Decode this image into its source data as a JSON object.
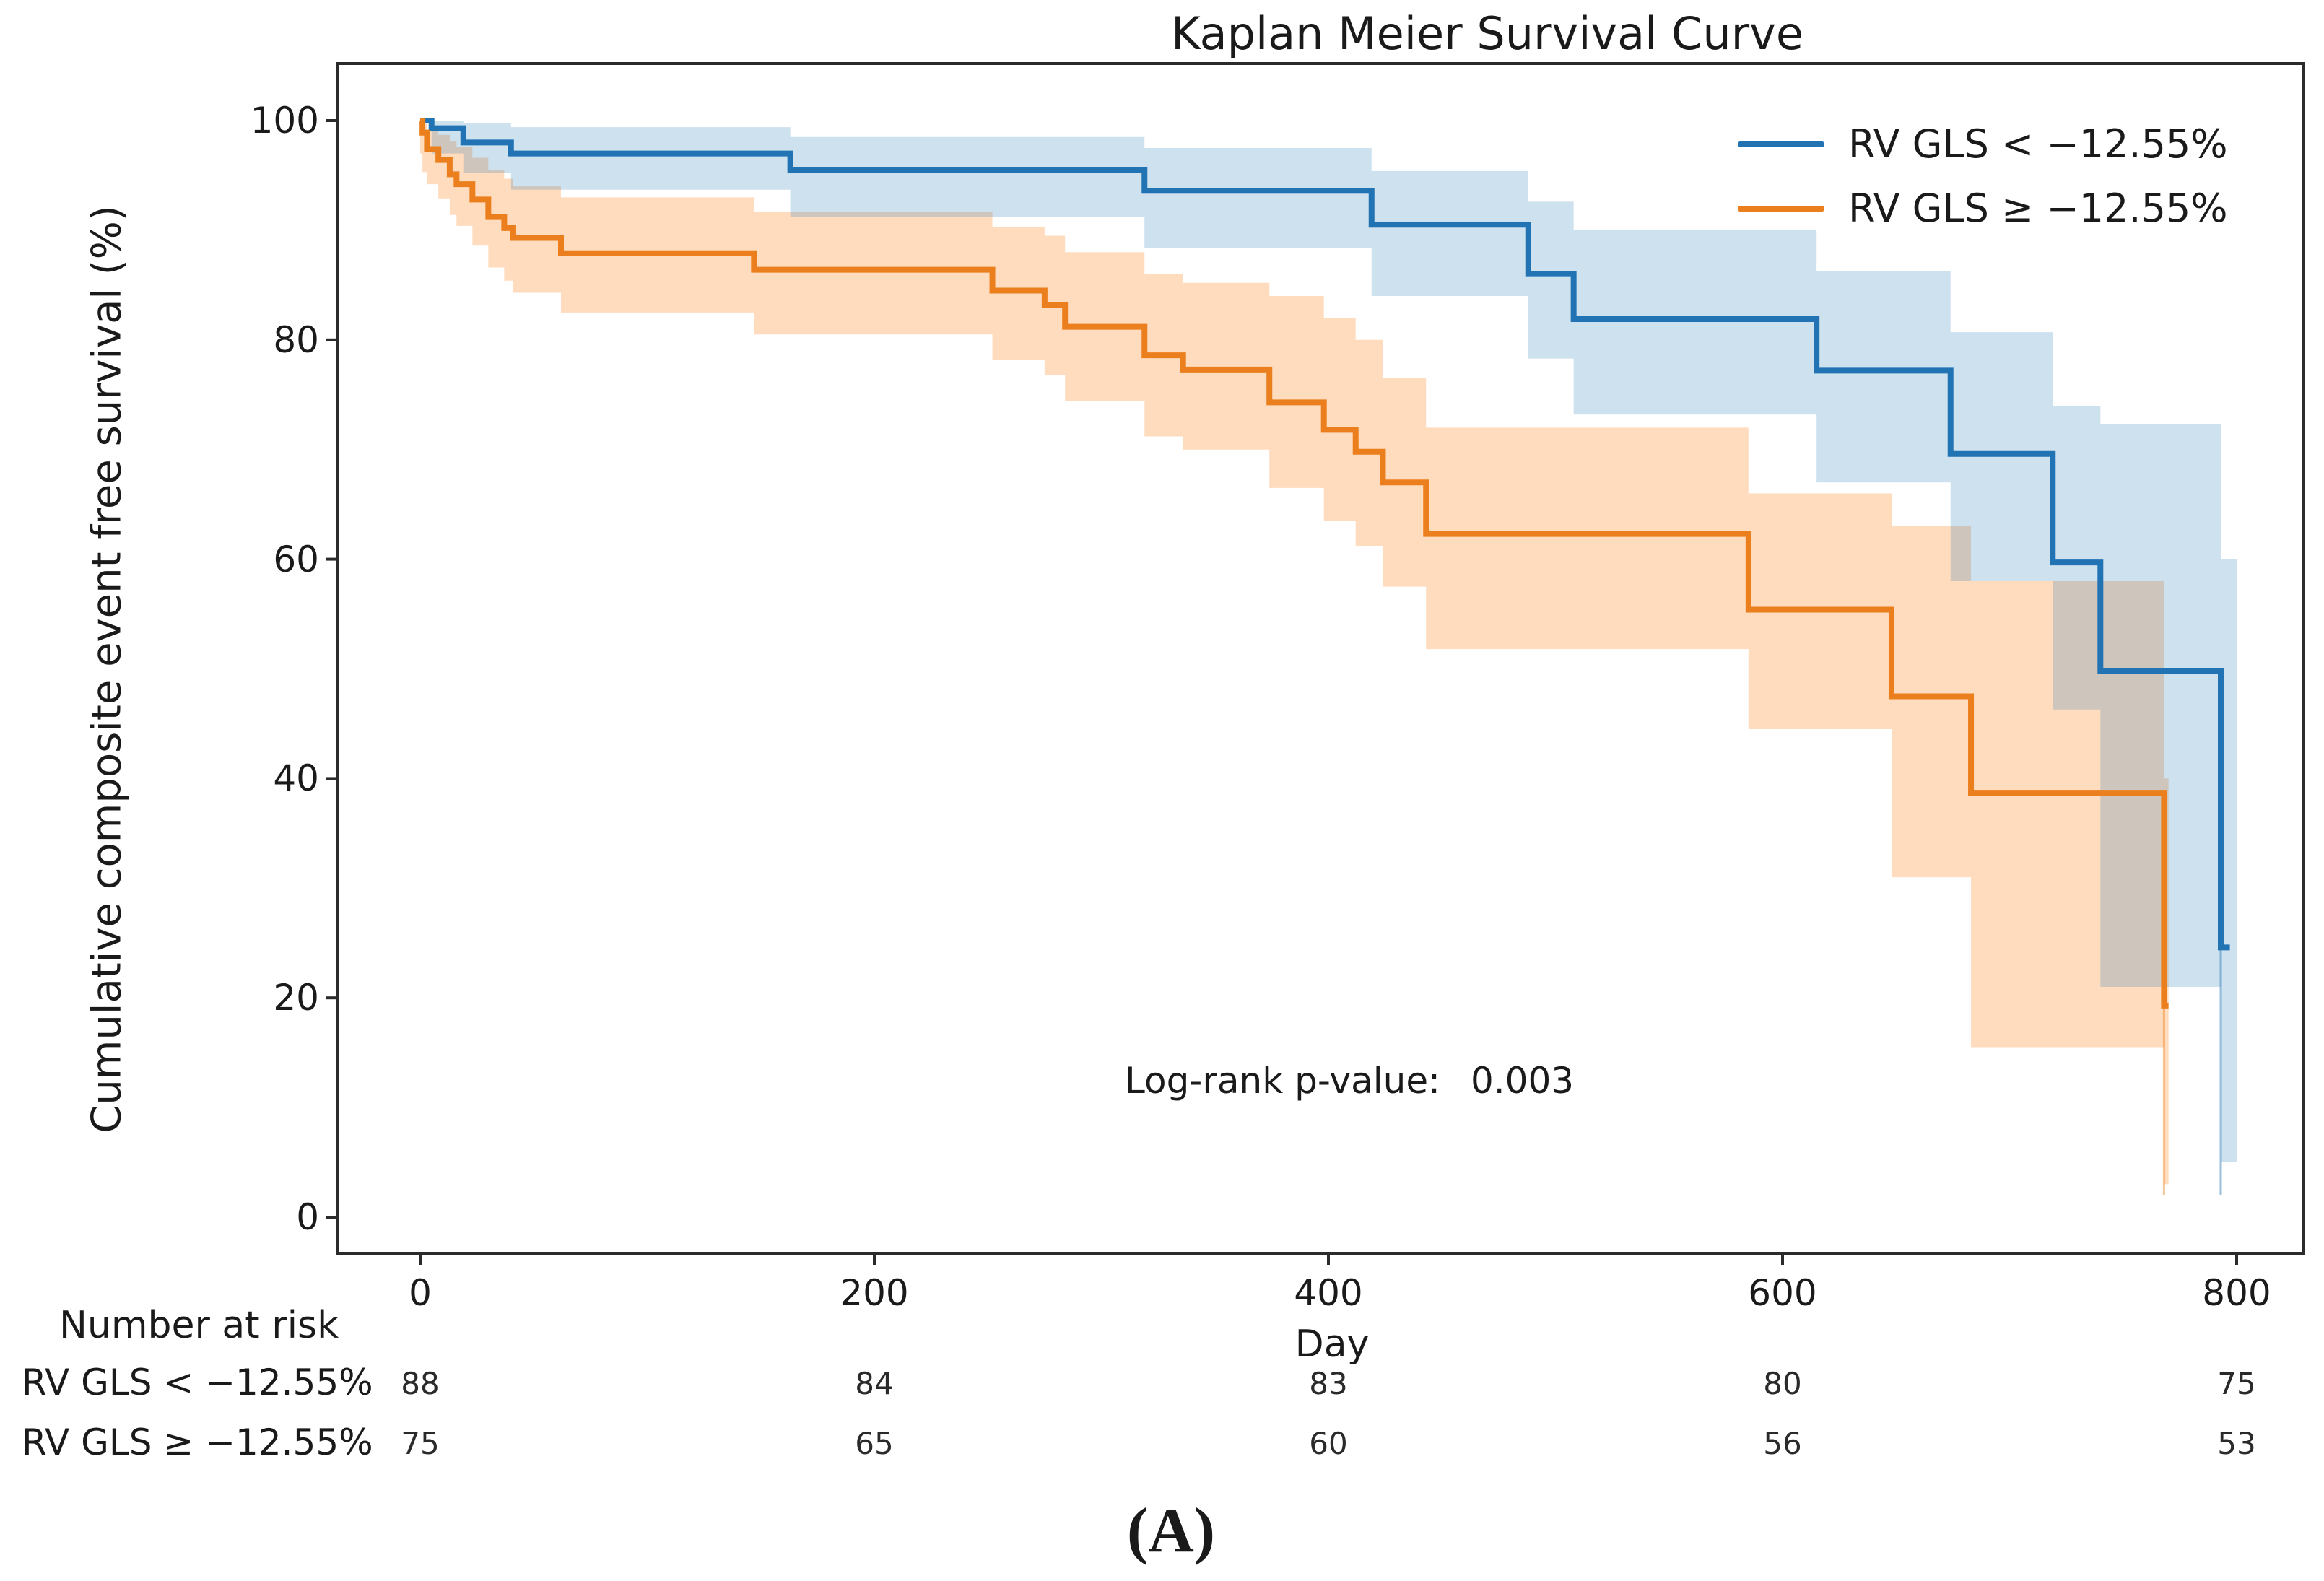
{
  "title": "Kaplan Meier Survival Curve",
  "axes": {
    "x_label": "Day",
    "y_label": "Cumulative composite event free survival (%)",
    "x_ticks": [
      0,
      200,
      400,
      600,
      800
    ],
    "y_ticks": [
      0,
      20,
      40,
      60,
      80,
      100
    ]
  },
  "legend": {
    "items": [
      {
        "label": "RV GLS < −12.55%",
        "color": "#2273b4"
      },
      {
        "label": "RV GLS ≥ −12.55%",
        "color": "#ec7f1d"
      }
    ]
  },
  "annotation": {
    "label": "Log-rank p-value:",
    "value": "0.003"
  },
  "risk_table": {
    "header": "Number at risk",
    "rows": [
      {
        "label": "RV GLS < −12.55%",
        "values": [
          "88",
          "84",
          "83",
          "80",
          "75"
        ]
      },
      {
        "label": "RV GLS ≥ −12.55%",
        "values": [
          "75",
          "65",
          "60",
          "56",
          "53"
        ]
      }
    ]
  },
  "caption": "(A)",
  "chart_data": {
    "type": "line",
    "subtype": "kaplan-meier-step",
    "title": "Kaplan Meier Survival Curve",
    "xlabel": "Day",
    "ylabel": "Cumulative composite event free survival (%)",
    "xlim": [
      0,
      800
    ],
    "ylim": [
      0,
      100
    ],
    "grid": false,
    "legend_position": "upper right",
    "annotation": "Log-rank p-value: 0.003",
    "series": [
      {
        "name": "RV GLS < −12.55%",
        "color": "#2273b4",
        "band_color": "rgba(31,119,180,0.22)",
        "end_day": 797,
        "steps": [
          [
            0,
            100
          ],
          [
            5,
            99.3
          ],
          [
            19,
            98.0
          ],
          [
            40,
            97.0
          ],
          [
            163,
            95.5
          ],
          [
            319,
            93.6
          ],
          [
            419,
            90.5
          ],
          [
            488,
            86.0
          ],
          [
            508,
            81.9
          ],
          [
            615,
            77.2
          ],
          [
            674,
            69.6
          ],
          [
            719,
            59.7
          ],
          [
            740,
            49.8
          ],
          [
            793,
            24.6
          ]
        ],
        "ci_band": [
          [
            0,
            100,
            100
          ],
          [
            5,
            100,
            97.0
          ],
          [
            19,
            99.8,
            95.2
          ],
          [
            40,
            99.4,
            93.7
          ],
          [
            163,
            98.5,
            91.2
          ],
          [
            319,
            97.5,
            88.4
          ],
          [
            419,
            95.4,
            84.0
          ],
          [
            488,
            92.6,
            78.3
          ],
          [
            508,
            90.0,
            73.2
          ],
          [
            615,
            86.3,
            67.0
          ],
          [
            674,
            80.7,
            58.0
          ],
          [
            719,
            74.0,
            46.3
          ],
          [
            740,
            72.3,
            21.0
          ],
          [
            793,
            60.0,
            5.0
          ]
        ],
        "ci_end_day": 800,
        "tail": {
          "day": 793,
          "from": 24.6,
          "to": 2
        }
      },
      {
        "name": "RV GLS ≥ −12.55%",
        "color": "#ec7f1d",
        "band_color": "rgba(255,127,14,0.27)",
        "end_day": 770,
        "steps": [
          [
            0,
            100
          ],
          [
            1,
            98.9
          ],
          [
            3,
            97.4
          ],
          [
            8,
            96.4
          ],
          [
            13,
            95.1
          ],
          [
            16,
            94.2
          ],
          [
            23,
            92.8
          ],
          [
            30,
            91.2
          ],
          [
            37,
            90.2
          ],
          [
            41,
            89.3
          ],
          [
            62,
            87.9
          ],
          [
            147,
            86.4
          ],
          [
            252,
            84.5
          ],
          [
            275,
            83.2
          ],
          [
            284,
            81.2
          ],
          [
            319,
            78.6
          ],
          [
            336,
            77.3
          ],
          [
            374,
            74.3
          ],
          [
            398,
            71.8
          ],
          [
            412,
            69.8
          ],
          [
            424,
            67.0
          ],
          [
            443,
            62.3
          ],
          [
            585,
            55.4
          ],
          [
            648,
            47.5
          ],
          [
            683,
            38.7
          ],
          [
            768,
            19.3
          ]
        ],
        "ci_band": [
          [
            0,
            100,
            97.0
          ],
          [
            1,
            99.7,
            95.3
          ],
          [
            3,
            99.2,
            94.2
          ],
          [
            8,
            98.7,
            92.9
          ],
          [
            13,
            98.1,
            91.4
          ],
          [
            16,
            97.6,
            90.4
          ],
          [
            23,
            96.6,
            88.6
          ],
          [
            30,
            95.5,
            86.6
          ],
          [
            37,
            94.7,
            85.4
          ],
          [
            41,
            94.0,
            84.3
          ],
          [
            62,
            93.0,
            82.5
          ],
          [
            147,
            91.7,
            80.5
          ],
          [
            252,
            90.3,
            78.2
          ],
          [
            275,
            89.5,
            76.8
          ],
          [
            284,
            88.0,
            74.4
          ],
          [
            319,
            86.0,
            71.2
          ],
          [
            336,
            85.2,
            70.0
          ],
          [
            374,
            84.0,
            66.5
          ],
          [
            398,
            82.0,
            63.5
          ],
          [
            412,
            80.0,
            61.2
          ],
          [
            424,
            76.5,
            57.5
          ],
          [
            443,
            72.0,
            51.8
          ],
          [
            585,
            66.0,
            44.5
          ],
          [
            648,
            63.0,
            31.0
          ],
          [
            683,
            58.0,
            15.5
          ],
          [
            768,
            40.0,
            3.0
          ]
        ],
        "ci_end_day": 770,
        "tail": {
          "day": 768,
          "from": 19.3,
          "to": 2
        }
      }
    ],
    "number_at_risk": {
      "times": [
        0,
        200,
        400,
        600,
        800
      ],
      "groups": [
        {
          "name": "RV GLS < −12.55%",
          "counts": [
            88,
            84,
            83,
            80,
            75
          ]
        },
        {
          "name": "RV GLS ≥ −12.55%",
          "counts": [
            75,
            65,
            60,
            56,
            53
          ]
        }
      ]
    }
  }
}
